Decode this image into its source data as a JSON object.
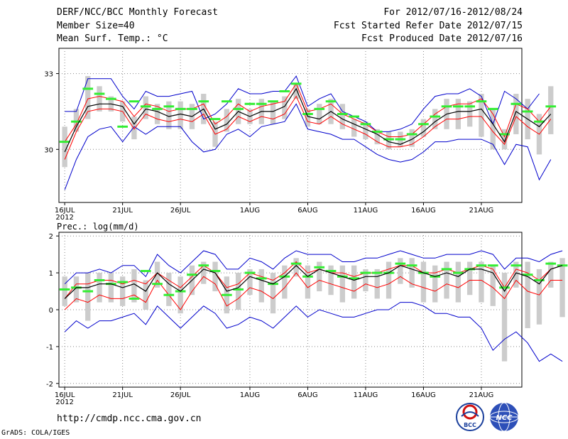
{
  "header": {
    "title": "DERF/NCC/BCC Monthly Forecast",
    "member_size": "Member Size=40",
    "variable": "Mean Surf. Temp.: °C",
    "period": "For 2012/07/16-2012/08/24",
    "start_date": "Fcst Started Refer Date 2012/07/15",
    "produced_date": "Fcst Produced Date 2012/07/16"
  },
  "footer": {
    "url": "http://cmdp.ncc.cma.gov.cn",
    "credit": "GrADS: COLA/IGES",
    "logo_bcc": "BCC",
    "logo_ncc": "NCC"
  },
  "colors": {
    "ensemble_mean": "#000000",
    "member_band": "#ff0000",
    "envelope": "#0000cc",
    "box": "#cccccc",
    "median": "#33ee33",
    "grid": "#888888"
  },
  "chart_data": [
    {
      "type": "line",
      "title": "Mean Surf. Temp.: °C",
      "x_start": "16JUL2012",
      "x_tick_labels": [
        "16JUL",
        "21JUL",
        "26JUL",
        "1AUG",
        "6AUG",
        "11AUG",
        "16AUG",
        "21AUG"
      ],
      "x_tick_sub": "2012",
      "x_tick_days": [
        1,
        6,
        11,
        17,
        22,
        27,
        32,
        37
      ],
      "days": 40,
      "y_ticks": [
        30,
        33
      ],
      "ylim": [
        27.9,
        34.0
      ],
      "series": [
        {
          "name": "ensemble mean",
          "values": [
            29.9,
            30.9,
            31.7,
            31.8,
            31.8,
            31.7,
            31.0,
            31.6,
            31.5,
            31.3,
            31.4,
            31.3,
            31.6,
            30.8,
            31.0,
            31.5,
            31.3,
            31.5,
            31.5,
            31.7,
            32.4,
            31.3,
            31.2,
            31.5,
            31.2,
            31.0,
            30.8,
            30.6,
            30.3,
            30.2,
            30.4,
            30.7,
            31.1,
            31.4,
            31.5,
            31.5,
            31.6,
            31.0,
            30.3,
            31.5,
            31.2,
            30.9,
            31.4
          ]
        },
        {
          "name": "member upper",
          "values": [
            30.3,
            31.0,
            32.0,
            32.1,
            32.0,
            31.9,
            31.3,
            31.8,
            31.7,
            31.5,
            31.6,
            31.6,
            31.8,
            31.0,
            31.3,
            31.8,
            31.5,
            31.7,
            31.8,
            31.9,
            32.6,
            31.5,
            31.6,
            31.8,
            31.4,
            31.2,
            31.0,
            30.7,
            30.5,
            30.5,
            30.6,
            31.0,
            31.4,
            31.7,
            31.8,
            31.8,
            32.0,
            31.4,
            30.5,
            31.8,
            31.6,
            31.1,
            31.7
          ]
        },
        {
          "name": "member lower",
          "values": [
            29.6,
            30.7,
            31.5,
            31.6,
            31.6,
            31.5,
            30.8,
            31.4,
            31.2,
            31.1,
            31.2,
            31.1,
            31.4,
            30.6,
            30.8,
            31.3,
            31.1,
            31.3,
            31.2,
            31.4,
            32.1,
            31.1,
            31.0,
            31.3,
            31.0,
            30.8,
            30.6,
            30.3,
            30.1,
            30.1,
            30.2,
            30.5,
            30.9,
            31.2,
            31.2,
            31.3,
            31.3,
            30.7,
            30.2,
            31.3,
            30.9,
            30.6,
            31.2
          ]
        },
        {
          "name": "envelope max",
          "values": [
            31.5,
            31.5,
            32.8,
            32.8,
            32.8,
            32.1,
            31.6,
            32.3,
            32.1,
            32.1,
            32.2,
            32.3,
            31.2,
            31.4,
            31.8,
            32.4,
            32.2,
            32.2,
            32.3,
            32.3,
            32.9,
            31.7,
            32.0,
            32.2,
            31.5,
            31.3,
            31.1,
            30.7,
            30.7,
            30.8,
            31.0,
            31.6,
            32.1,
            32.2,
            32.2,
            32.4,
            32.1,
            31.0,
            32.3,
            32.0,
            31.6,
            32.2
          ]
        },
        {
          "name": "envelope min",
          "values": [
            28.4,
            29.6,
            30.5,
            30.8,
            30.9,
            30.3,
            30.9,
            30.6,
            30.9,
            30.9,
            30.9,
            30.3,
            29.9,
            30.0,
            30.6,
            30.8,
            30.5,
            30.9,
            31.0,
            31.1,
            31.8,
            30.8,
            30.7,
            30.6,
            30.4,
            30.4,
            30.1,
            29.8,
            29.6,
            29.5,
            29.6,
            29.9,
            30.3,
            30.3,
            30.4,
            30.4,
            30.4,
            30.2,
            29.4,
            30.2,
            30.1,
            28.8,
            29.6
          ]
        }
      ],
      "boxes": {
        "lo": [
          29.3,
          30.7,
          31.2,
          31.5,
          31.5,
          31.1,
          30.4,
          31.2,
          31.0,
          30.8,
          30.8,
          30.8,
          31.0,
          30.1,
          30.7,
          31.0,
          31.0,
          31.0,
          31.0,
          31.2,
          32.0,
          30.9,
          31.0,
          31.0,
          30.8,
          30.5,
          30.4,
          30.2,
          30.0,
          30.1,
          30.1,
          30.5,
          30.8,
          30.8,
          30.8,
          30.9,
          30.5,
          30.0,
          30.0,
          30.6,
          30.4,
          29.8,
          30.6
        ],
        "hi": [
          30.9,
          31.6,
          32.9,
          32.5,
          32.1,
          31.9,
          31.3,
          32.1,
          31.8,
          31.9,
          31.9,
          31.8,
          32.2,
          31.1,
          31.6,
          32.0,
          31.6,
          32.0,
          31.9,
          32.1,
          32.6,
          31.6,
          31.8,
          32.0,
          31.8,
          31.2,
          31.1,
          30.8,
          30.7,
          30.7,
          30.8,
          31.2,
          31.6,
          32.0,
          32.0,
          31.9,
          32.2,
          31.6,
          30.8,
          32.2,
          32.0,
          31.4,
          32.5
        ],
        "median": [
          30.3,
          31.1,
          32.4,
          32.2,
          32.0,
          30.9,
          31.9,
          31.7,
          31.6,
          31.7,
          31.6,
          31.6,
          31.9,
          31.2,
          31.9,
          31.6,
          31.8,
          31.8,
          31.9,
          32.3,
          32.6,
          31.4,
          31.6,
          31.9,
          31.4,
          31.3,
          31.0,
          30.7,
          30.4,
          30.4,
          30.6,
          31.0,
          31.3,
          31.7,
          31.7,
          31.7,
          31.9,
          31.6,
          30.6,
          31.8,
          31.5,
          31.1,
          31.7
        ]
      }
    },
    {
      "type": "line",
      "title": "Prec.: log(mm/d)",
      "x_start": "16JUL2012",
      "x_tick_labels": [
        "16JUL",
        "21JUL",
        "26JUL",
        "1AUG",
        "6AUG",
        "11AUG",
        "16AUG",
        "21AUG"
      ],
      "x_tick_sub": "2012",
      "x_tick_days": [
        1,
        6,
        11,
        17,
        22,
        27,
        32,
        37
      ],
      "days": 40,
      "y_ticks": [
        -2,
        -1,
        0,
        1,
        2
      ],
      "ylim": [
        -2.1,
        2.1
      ],
      "series": [
        {
          "name": "ensemble mean",
          "values": [
            0.3,
            0.6,
            0.6,
            0.7,
            0.7,
            0.6,
            0.7,
            0.5,
            1.0,
            0.7,
            0.5,
            0.8,
            1.1,
            1.0,
            0.5,
            0.6,
            0.9,
            0.8,
            0.7,
            0.9,
            1.2,
            0.9,
            1.1,
            1.0,
            0.9,
            0.8,
            0.9,
            0.9,
            1.0,
            1.2,
            1.1,
            1.0,
            0.9,
            1.0,
            0.9,
            1.1,
            1.1,
            1.0,
            0.5,
            1.0,
            0.9,
            0.7,
            1.1,
            1.2
          ]
        },
        {
          "name": "member upper",
          "values": [
            0.3,
            0.7,
            0.7,
            0.8,
            0.8,
            0.7,
            0.8,
            0.7,
            1.0,
            0.8,
            0.6,
            0.9,
            1.2,
            1.0,
            0.6,
            0.7,
            1.0,
            0.9,
            0.8,
            1.0,
            1.3,
            1.0,
            1.1,
            1.0,
            1.0,
            0.9,
            1.0,
            1.0,
            1.1,
            1.2,
            1.2,
            1.0,
            1.0,
            1.1,
            1.0,
            1.1,
            1.2,
            1.1,
            0.6,
            1.1,
            1.0,
            0.8,
            1.1,
            1.2
          ]
        },
        {
          "name": "member lower",
          "values": [
            0.0,
            0.3,
            0.2,
            0.4,
            0.3,
            0.3,
            0.4,
            0.2,
            0.8,
            0.4,
            0.0,
            0.5,
            0.9,
            0.7,
            0.1,
            0.3,
            0.6,
            0.5,
            0.3,
            0.6,
            1.0,
            0.6,
            0.8,
            0.7,
            0.6,
            0.5,
            0.7,
            0.6,
            0.7,
            0.9,
            0.7,
            0.6,
            0.5,
            0.7,
            0.6,
            0.8,
            0.8,
            0.6,
            0.3,
            0.8,
            0.5,
            0.4,
            0.8,
            0.8
          ]
        },
        {
          "name": "envelope max",
          "values": [
            0.7,
            1.0,
            1.0,
            1.1,
            1.0,
            1.2,
            1.2,
            0.9,
            1.5,
            1.2,
            1.0,
            1.3,
            1.6,
            1.5,
            1.1,
            1.1,
            1.4,
            1.3,
            1.1,
            1.4,
            1.6,
            1.5,
            1.5,
            1.5,
            1.3,
            1.3,
            1.4,
            1.4,
            1.5,
            1.6,
            1.5,
            1.4,
            1.4,
            1.5,
            1.5,
            1.5,
            1.6,
            1.5,
            1.1,
            1.4,
            1.4,
            1.3,
            1.5,
            1.6
          ]
        },
        {
          "name": "envelope min",
          "values": [
            -0.6,
            -0.3,
            -0.5,
            -0.3,
            -0.3,
            -0.2,
            -0.1,
            -0.4,
            0.1,
            -0.2,
            -0.5,
            -0.2,
            0.1,
            -0.1,
            -0.5,
            -0.4,
            -0.2,
            -0.3,
            -0.5,
            -0.2,
            0.1,
            -0.2,
            0.0,
            -0.1,
            -0.2,
            -0.2,
            -0.1,
            0.0,
            0.0,
            0.2,
            0.2,
            0.1,
            -0.1,
            -0.1,
            -0.2,
            -0.2,
            -0.5,
            -1.1,
            -0.8,
            -0.6,
            -0.9,
            -1.4,
            -1.2,
            -1.4
          ]
        }
      ],
      "boxes": {
        "lo": [
          0.1,
          0.2,
          -0.3,
          0.2,
          0.2,
          0.1,
          0.2,
          0.0,
          0.6,
          0.1,
          -0.1,
          0.4,
          0.7,
          0.5,
          -0.1,
          0.0,
          0.4,
          0.2,
          -0.1,
          0.3,
          0.9,
          0.3,
          0.5,
          0.4,
          0.2,
          0.3,
          0.5,
          0.3,
          0.3,
          0.7,
          0.6,
          0.2,
          0.2,
          0.3,
          0.2,
          0.4,
          0.2,
          0.1,
          -1.4,
          0.6,
          -0.5,
          -0.4,
          0.6,
          -0.2
        ],
        "hi": [
          0.9,
          0.9,
          1.0,
          1.0,
          1.0,
          0.9,
          1.1,
          0.8,
          1.3,
          1.0,
          0.9,
          1.2,
          1.3,
          1.3,
          0.9,
          1.0,
          1.1,
          1.1,
          1.0,
          1.2,
          1.4,
          1.2,
          1.3,
          1.2,
          1.2,
          1.2,
          1.1,
          1.1,
          1.3,
          1.4,
          1.4,
          1.3,
          1.2,
          1.3,
          1.3,
          1.3,
          1.3,
          1.2,
          1.0,
          1.3,
          1.3,
          1.1,
          1.3,
          1.4
        ],
        "median": [
          0.55,
          0.6,
          0.5,
          0.8,
          0.7,
          0.75,
          0.3,
          1.05,
          0.7,
          0.4,
          0.5,
          0.95,
          1.2,
          1.05,
          0.4,
          0.55,
          1.0,
          0.85,
          0.7,
          0.9,
          1.25,
          0.9,
          1.15,
          1.05,
          0.9,
          0.85,
          1.0,
          1.0,
          1.0,
          1.25,
          1.2,
          1.0,
          0.9,
          1.1,
          1.0,
          1.1,
          1.2,
          1.2,
          0.6,
          1.2,
          0.95,
          0.8,
          1.25,
          1.2
        ]
      }
    }
  ]
}
